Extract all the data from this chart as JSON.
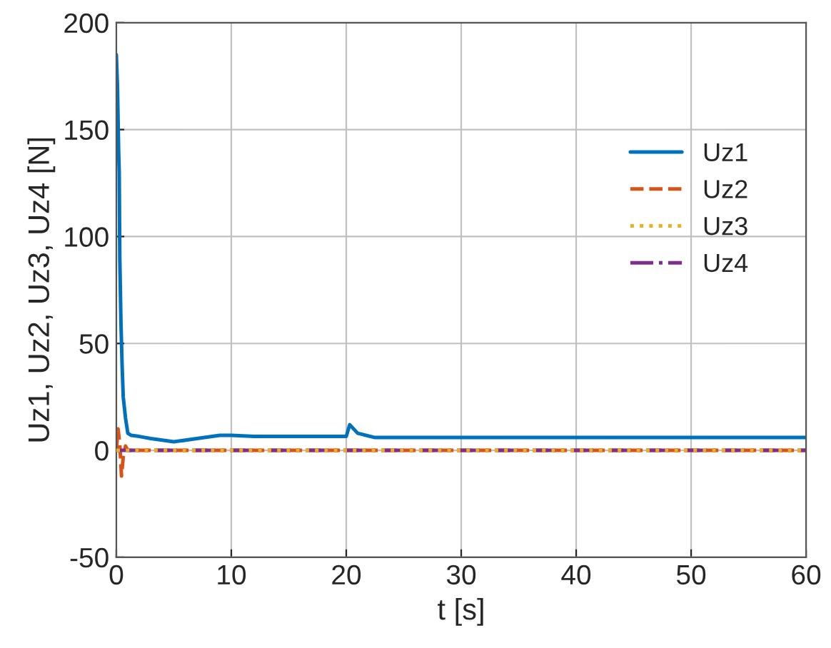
{
  "chart_data": {
    "type": "line",
    "xlabel": "t [s]",
    "ylabel": "Uz1, Uz2, Uz3, Uz4 [N]",
    "xlim": [
      0,
      60
    ],
    "xticks": [
      0,
      10,
      20,
      30,
      40,
      50,
      60
    ],
    "ylim": [
      -50,
      200
    ],
    "yticks": [
      -50,
      0,
      50,
      100,
      150,
      200
    ],
    "grid": true,
    "legend": "right",
    "series": [
      {
        "name": "Uz1",
        "color": "#0072bd",
        "line_style": "solid",
        "x": [
          0,
          0.1,
          0.2,
          0.25,
          0.3,
          0.4,
          0.5,
          0.6,
          0.8,
          1.0,
          1.3,
          2,
          3,
          5,
          7,
          9,
          10,
          12,
          15,
          20,
          20.3,
          21,
          22.5,
          30,
          40,
          50,
          60
        ],
        "values": [
          185,
          170,
          140,
          130,
          90,
          60,
          40,
          25,
          15,
          8,
          7,
          6.5,
          5.5,
          4,
          5.5,
          7,
          7,
          6.5,
          6.5,
          6.5,
          12,
          8,
          6,
          6,
          6,
          6,
          6
        ]
      },
      {
        "name": "Uz2",
        "color": "#d95319",
        "line_style": "dashed",
        "x": [
          0,
          0.15,
          0.3,
          0.45,
          0.6,
          0.8,
          1.0,
          1.5,
          60
        ],
        "values": [
          0,
          10,
          3,
          -12,
          -3,
          2,
          0,
          0,
          0
        ]
      },
      {
        "name": "Uz3",
        "color": "#edb120",
        "line_style": "dotted",
        "x": [
          0,
          60
        ],
        "values": [
          0,
          0
        ]
      },
      {
        "name": "Uz4",
        "color": "#7e2f8e",
        "line_style": "dashdot",
        "x": [
          0,
          60
        ],
        "values": [
          0,
          0
        ]
      }
    ]
  }
}
